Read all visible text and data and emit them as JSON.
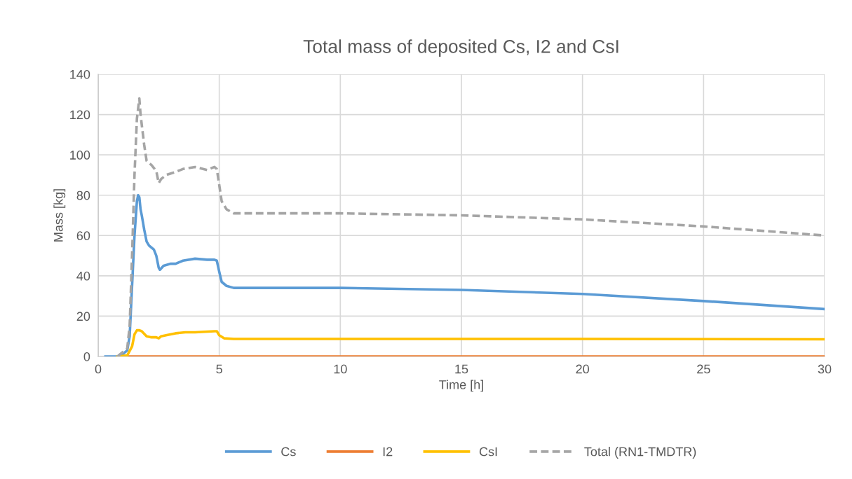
{
  "chart_data": {
    "type": "line",
    "title": "Total mass of deposited Cs, I2 and CsI",
    "xlabel": "Time [h]",
    "ylabel": "Mass [kg]",
    "xlim": [
      0,
      30
    ],
    "xticks": [
      0,
      5,
      10,
      15,
      20,
      25,
      30
    ],
    "ylim": [
      0,
      140
    ],
    "yticks": [
      0,
      20,
      40,
      60,
      80,
      100,
      120,
      140
    ],
    "grid": true,
    "legend": "bottom",
    "marker": "none",
    "series": [
      {
        "name": "Cs",
        "color": "#5b9bd5",
        "line_style": "solid",
        "x": [
          0.3,
          0.8,
          1.0,
          1.2,
          1.3,
          1.4,
          1.5,
          1.6,
          1.65,
          1.7,
          1.75,
          1.8,
          1.9,
          2.0,
          2.1,
          2.3,
          2.4,
          2.5,
          2.55,
          2.7,
          3.0,
          3.2,
          3.5,
          4.0,
          4.5,
          4.8,
          4.9,
          5.0,
          5.1,
          5.3,
          5.6,
          7,
          10,
          15,
          20,
          25,
          30
        ],
        "values": [
          0,
          0,
          1,
          3,
          10,
          35,
          60,
          77,
          80,
          79,
          73,
          70,
          63,
          57,
          55,
          53,
          50,
          44,
          43,
          45,
          46,
          46,
          47.5,
          48.5,
          48,
          48,
          47.5,
          42,
          37,
          35,
          34,
          34,
          34,
          33,
          31,
          27.5,
          23.5
        ]
      },
      {
        "name": "I2",
        "color": "#ed7d31",
        "line_style": "solid",
        "x": [
          1.2,
          30
        ],
        "values": [
          0,
          0
        ]
      },
      {
        "name": "CsI",
        "color": "#ffc000",
        "line_style": "solid",
        "x": [
          0.8,
          1.2,
          1.4,
          1.5,
          1.6,
          1.7,
          1.8,
          2.0,
          2.2,
          2.4,
          2.5,
          2.6,
          2.8,
          3.2,
          3.6,
          4.0,
          4.8,
          4.9,
          5.0,
          5.2,
          5.6,
          10,
          20,
          30
        ],
        "values": [
          0,
          0.5,
          5,
          11,
          13,
          13,
          12.5,
          10,
          9.5,
          9.5,
          9,
          10,
          10.5,
          11.5,
          12,
          12,
          12.5,
          12.5,
          10.5,
          9,
          8.7,
          8.7,
          8.7,
          8.5
        ]
      },
      {
        "name": "Total (RN1-TMDTR)",
        "color": "#a5a5a5",
        "line_style": "dashed",
        "x": [
          0.8,
          1.0,
          1.2,
          1.3,
          1.4,
          1.5,
          1.6,
          1.7,
          1.75,
          1.9,
          2.0,
          2.2,
          2.4,
          2.5,
          2.6,
          2.8,
          3.2,
          3.5,
          4.0,
          4.5,
          4.8,
          4.9,
          5.0,
          5.1,
          5.3,
          5.6,
          7,
          10,
          15,
          20,
          25,
          30
        ],
        "values": [
          0,
          2,
          4,
          15,
          50,
          90,
          118,
          128,
          120,
          105,
          97,
          95,
          92,
          86,
          88,
          90,
          91.5,
          93,
          94,
          92.5,
          94,
          93,
          85,
          77,
          73,
          71,
          71,
          71,
          70,
          68,
          64.5,
          60
        ]
      }
    ]
  }
}
